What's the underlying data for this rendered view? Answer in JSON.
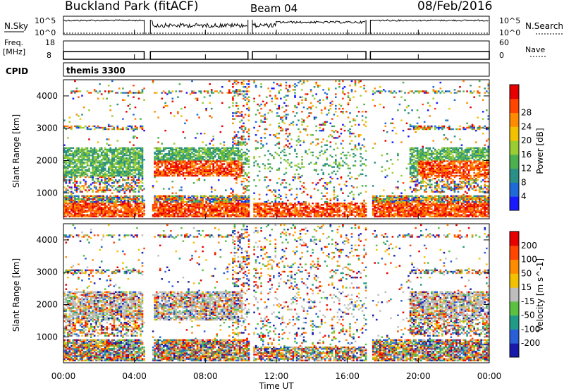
{
  "header": {
    "station": "Buckland Park (fitACF)",
    "beam": "Beam 04",
    "date": "08/Feb/2016"
  },
  "panels": {
    "nsky_label": "N.Sky",
    "nsky_ticks": [
      "10^5",
      "10^0"
    ],
    "nsearch_label": "N.Search",
    "nsearch_ticks": [
      "10^5",
      "10^0"
    ],
    "freq_label": "Freq.",
    "freq_unit": "[MHz]",
    "freq_ticks": [
      "18",
      "8"
    ],
    "nave_label": "Nave",
    "nave_ticks": [
      "60",
      "0"
    ],
    "cpid_label": "CPID",
    "cpid_text": "themis 3300"
  },
  "chart_data": [
    {
      "type": "heatmap",
      "name": "power",
      "ylabel": "Slant Range [km]",
      "yticks": [
        1000,
        2000,
        3000,
        4000
      ],
      "ylim": [
        200,
        4500
      ],
      "colorbar_label": "Power [dB]",
      "colorbar_ticks": [
        "4",
        "8",
        "12",
        "16",
        "20",
        "24",
        "28"
      ],
      "colors": [
        "#1a1aff",
        "#1e6ad8",
        "#2a8f86",
        "#4caf50",
        "#9acd32",
        "#f2c200",
        "#ff8c00",
        "#ff4500",
        "#e60000"
      ]
    },
    {
      "type": "heatmap",
      "name": "velocity",
      "ylabel": "Slant Range [km]",
      "yticks": [
        1000,
        2000,
        3000,
        4000
      ],
      "ylim": [
        200,
        4500
      ],
      "colorbar_label": "Velocity [m s^-1]",
      "colorbar_ticks": [
        "200",
        "100",
        "50",
        "15",
        "-15",
        "-50",
        "-100",
        "-200"
      ],
      "colors": [
        "#1a1aaa",
        "#2a5fd8",
        "#1f9b88",
        "#5cc040",
        "#bdbdbd",
        "#f2c200",
        "#ff8c00",
        "#ff4500",
        "#e60000"
      ],
      "xlabel": "Time UT",
      "xticks": [
        "00:00",
        "04:00",
        "08:00",
        "12:00",
        "16:00",
        "20:00",
        "00:00"
      ],
      "xlim_hours": [
        0,
        24
      ]
    }
  ]
}
